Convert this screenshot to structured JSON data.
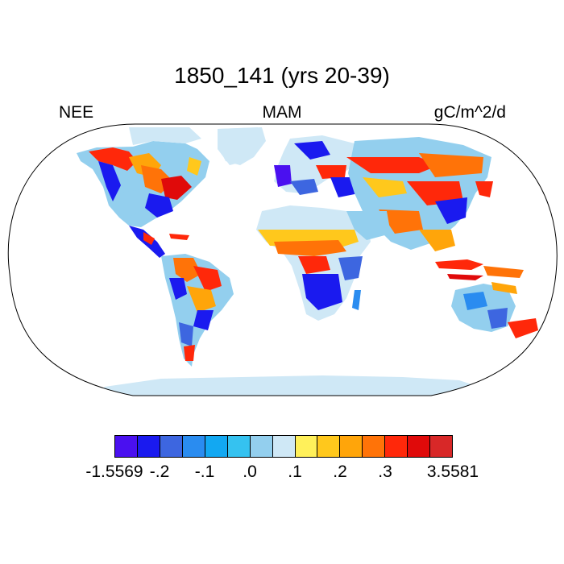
{
  "title": "1850_141 (yrs 20-39)",
  "subtitle_left": "NEE",
  "subtitle_center": "MAM",
  "subtitle_right": "gC/m^2/d",
  "colorbar": {
    "colors": [
      "#4a10f0",
      "#1a1aef",
      "#3d66e0",
      "#2a8cf0",
      "#12a8f2",
      "#35c2f0",
      "#93cfee",
      "#cfe8f6",
      "#fff05a",
      "#ffc81c",
      "#ffa50a",
      "#ff7308",
      "#ff280a",
      "#e00a0a",
      "#d82828"
    ],
    "labels": [
      "-1.5569",
      "-.2",
      "-.1",
      ".0",
      ".1",
      ".2",
      ".3",
      "3.5581"
    ]
  }
}
